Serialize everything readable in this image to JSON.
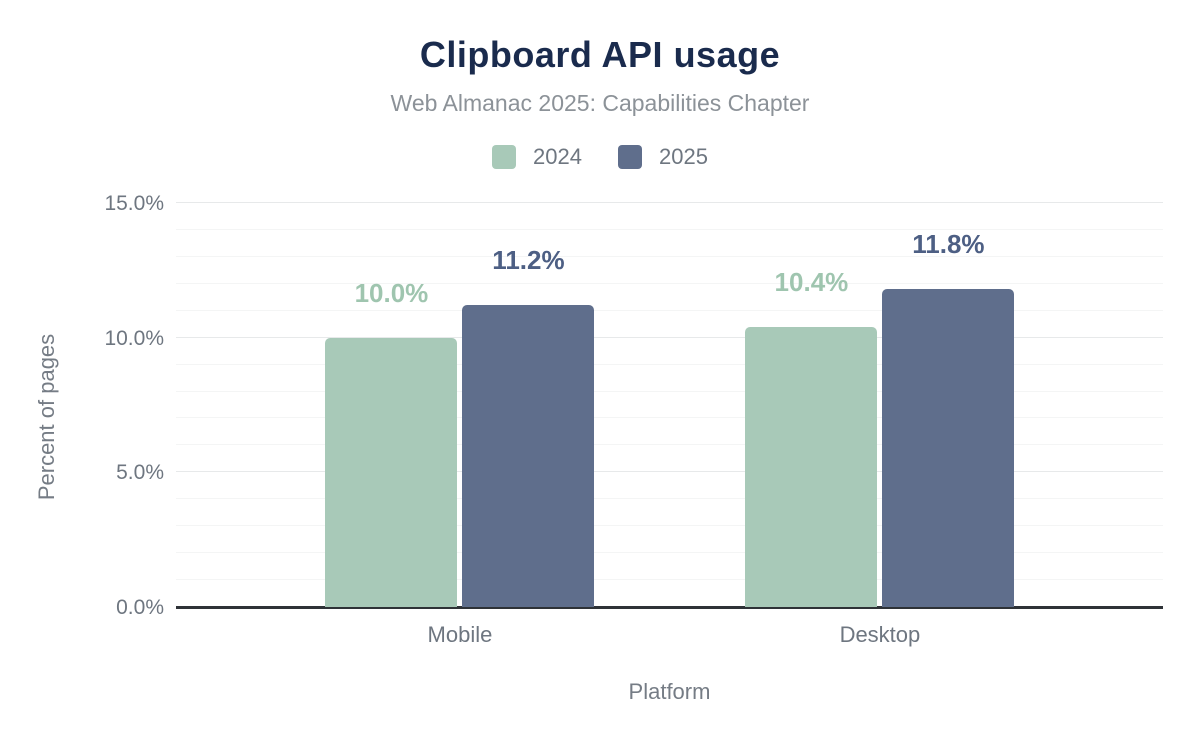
{
  "chart_data": {
    "type": "bar",
    "title": "Clipboard API usage",
    "subtitle": "Web Almanac 2025: Capabilities Chapter",
    "xlabel": "Platform",
    "ylabel": "Percent of pages",
    "categories": [
      "Mobile",
      "Desktop"
    ],
    "series": [
      {
        "name": "2024",
        "values": [
          10.0,
          10.4
        ],
        "labels": [
          "10.0%",
          "10.4%"
        ],
        "color": "#a8c9b8",
        "label_color": "#9fc5af"
      },
      {
        "name": "2025",
        "values": [
          11.2,
          11.8
        ],
        "labels": [
          "11.2%",
          "11.8%"
        ],
        "color": "#5f6e8c",
        "label_color": "#4d5f84"
      }
    ],
    "ylim": [
      0,
      15
    ],
    "yticks": {
      "values": [
        0,
        5,
        10,
        15
      ],
      "labels": [
        "0.0%",
        "5.0%",
        "10.0%",
        "15.0%"
      ]
    },
    "minor_grid_step": 1,
    "grid": true,
    "legend_position": "top"
  },
  "colors": {
    "title": "#1a2b4d",
    "subtitle": "#8c9298",
    "tick_text": "#6e7680",
    "axis_title_text": "#757c85",
    "axis_line": "#2e3237",
    "major_grid": "#e7e9ea",
    "minor_grid": "#f4f5f5",
    "background": "#ffffff"
  }
}
